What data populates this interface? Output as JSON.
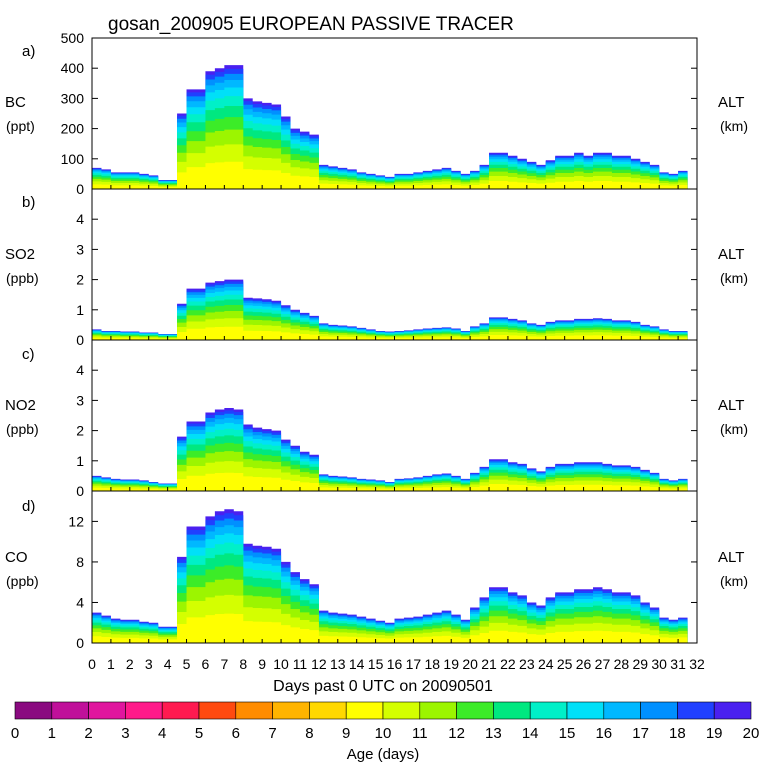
{
  "chart_data": {
    "type": "area",
    "title": "gosan_200905 EUROPEAN PASSIVE TRACER",
    "xlabel": "Days past 0 UTC on 20090501",
    "x_ticks": [
      "0",
      "1",
      "2",
      "3",
      "4",
      "5",
      "6",
      "7",
      "8",
      "9",
      "10",
      "11",
      "12",
      "13",
      "14",
      "15",
      "16",
      "17",
      "18",
      "19",
      "20",
      "21",
      "22",
      "23",
      "24",
      "25",
      "26",
      "27",
      "28",
      "29",
      "30",
      "31",
      "32"
    ],
    "xlim": [
      0,
      32
    ],
    "right_label": [
      "ALT",
      "(km)"
    ],
    "days": [
      0,
      0.5,
      1,
      1.5,
      2,
      2.5,
      3,
      3.5,
      4,
      4.5,
      5,
      5.5,
      6,
      6.5,
      7,
      7.5,
      8,
      8.5,
      9,
      9.5,
      10,
      10.5,
      11,
      11.5,
      12,
      12.5,
      13,
      13.5,
      14,
      14.5,
      15,
      15.5,
      16,
      16.5,
      17,
      17.5,
      18,
      18.5,
      19,
      19.5,
      20,
      20.5,
      21,
      21.5,
      22,
      22.5,
      23,
      23.5,
      24,
      24.5,
      25,
      25.5,
      26,
      26.5,
      27,
      27.5,
      28,
      28.5,
      29,
      29.5,
      30,
      30.5,
      31
    ],
    "panels": [
      {
        "letter": "a)",
        "name": "BC",
        "unit": "(ppt)",
        "ylim": [
          0,
          500
        ],
        "yticks": [
          "0",
          "100",
          "200",
          "300",
          "400",
          "500"
        ],
        "totals": [
          70,
          65,
          55,
          55,
          55,
          50,
          45,
          30,
          30,
          250,
          330,
          330,
          390,
          400,
          410,
          410,
          300,
          290,
          285,
          280,
          240,
          200,
          190,
          180,
          80,
          75,
          70,
          65,
          55,
          50,
          45,
          40,
          50,
          50,
          55,
          60,
          65,
          70,
          60,
          50,
          60,
          80,
          120,
          120,
          110,
          100,
          90,
          80,
          95,
          110,
          110,
          120,
          110,
          120,
          120,
          110,
          110,
          100,
          90,
          80,
          55,
          50,
          60
        ]
      },
      {
        "letter": "b)",
        "name": "SO2",
        "unit": "(ppb)",
        "ylim": [
          0,
          5
        ],
        "yticks": [
          "0",
          "1",
          "2",
          "3",
          "4"
        ],
        "totals": [
          0.35,
          0.3,
          0.3,
          0.28,
          0.28,
          0.25,
          0.25,
          0.2,
          0.2,
          1.2,
          1.7,
          1.7,
          1.9,
          1.95,
          2.0,
          2.0,
          1.4,
          1.38,
          1.35,
          1.3,
          1.15,
          1.0,
          0.9,
          0.8,
          0.55,
          0.5,
          0.48,
          0.45,
          0.4,
          0.35,
          0.3,
          0.28,
          0.3,
          0.32,
          0.35,
          0.38,
          0.4,
          0.42,
          0.38,
          0.3,
          0.45,
          0.55,
          0.75,
          0.75,
          0.7,
          0.65,
          0.55,
          0.5,
          0.6,
          0.65,
          0.65,
          0.7,
          0.7,
          0.72,
          0.7,
          0.65,
          0.65,
          0.6,
          0.5,
          0.45,
          0.35,
          0.3,
          0.3
        ]
      },
      {
        "letter": "c)",
        "name": "NO2",
        "unit": "(ppb)",
        "ylim": [
          0,
          5
        ],
        "yticks": [
          "0",
          "1",
          "2",
          "3",
          "4"
        ],
        "totals": [
          0.5,
          0.45,
          0.4,
          0.38,
          0.38,
          0.35,
          0.3,
          0.25,
          0.25,
          1.8,
          2.3,
          2.3,
          2.6,
          2.7,
          2.75,
          2.7,
          2.2,
          2.1,
          2.05,
          2.0,
          1.7,
          1.5,
          1.3,
          1.2,
          0.55,
          0.5,
          0.48,
          0.45,
          0.4,
          0.38,
          0.35,
          0.3,
          0.4,
          0.42,
          0.45,
          0.5,
          0.55,
          0.58,
          0.5,
          0.4,
          0.6,
          0.8,
          1.05,
          1.05,
          0.95,
          0.9,
          0.75,
          0.65,
          0.8,
          0.9,
          0.9,
          0.95,
          0.95,
          0.95,
          0.9,
          0.85,
          0.85,
          0.8,
          0.7,
          0.6,
          0.4,
          0.35,
          0.4
        ]
      },
      {
        "letter": "d)",
        "name": "CO",
        "unit": "(ppb)",
        "ylim": [
          0,
          15
        ],
        "yticks": [
          "0",
          "4",
          "8",
          "12"
        ],
        "totals": [
          3.0,
          2.7,
          2.4,
          2.3,
          2.3,
          2.1,
          2.0,
          1.6,
          1.6,
          8.5,
          11.5,
          11.5,
          12.5,
          13.0,
          13.2,
          13.0,
          9.8,
          9.6,
          9.5,
          9.3,
          8.0,
          7.0,
          6.3,
          5.8,
          3.2,
          3.0,
          2.9,
          2.8,
          2.6,
          2.4,
          2.2,
          2.0,
          2.4,
          2.5,
          2.6,
          2.8,
          3.0,
          3.2,
          2.8,
          2.3,
          3.5,
          4.5,
          5.5,
          5.5,
          5.0,
          4.7,
          4.0,
          3.7,
          4.5,
          5.0,
          5.0,
          5.3,
          5.3,
          5.5,
          5.3,
          5.0,
          5.0,
          4.7,
          4.0,
          3.5,
          2.5,
          2.3,
          2.5
        ]
      }
    ],
    "colorbar": {
      "label": "Age (days)",
      "ticks": [
        "0",
        "1",
        "2",
        "3",
        "4",
        "5",
        "6",
        "7",
        "8",
        "9",
        "10",
        "11",
        "12",
        "13",
        "14",
        "15",
        "16",
        "17",
        "18",
        "19",
        "20"
      ],
      "colors": [
        "#8a0a80",
        "#c0109a",
        "#e0169e",
        "#ff1a8a",
        "#ff1a50",
        "#ff4a10",
        "#ff8c00",
        "#ffb400",
        "#ffd800",
        "#ffff00",
        "#d4ff00",
        "#9cf500",
        "#3cec28",
        "#00e880",
        "#00f0c8",
        "#00e0f8",
        "#00b8ff",
        "#0090ff",
        "#2040ff",
        "#4a20f0"
      ]
    },
    "stack_colors": [
      "#ffff00",
      "#d4ff00",
      "#9cf500",
      "#3cec28",
      "#00e880",
      "#00f0c8",
      "#00e0f8",
      "#00b8ff",
      "#0090ff",
      "#2040ff",
      "#4a20f0"
    ]
  }
}
